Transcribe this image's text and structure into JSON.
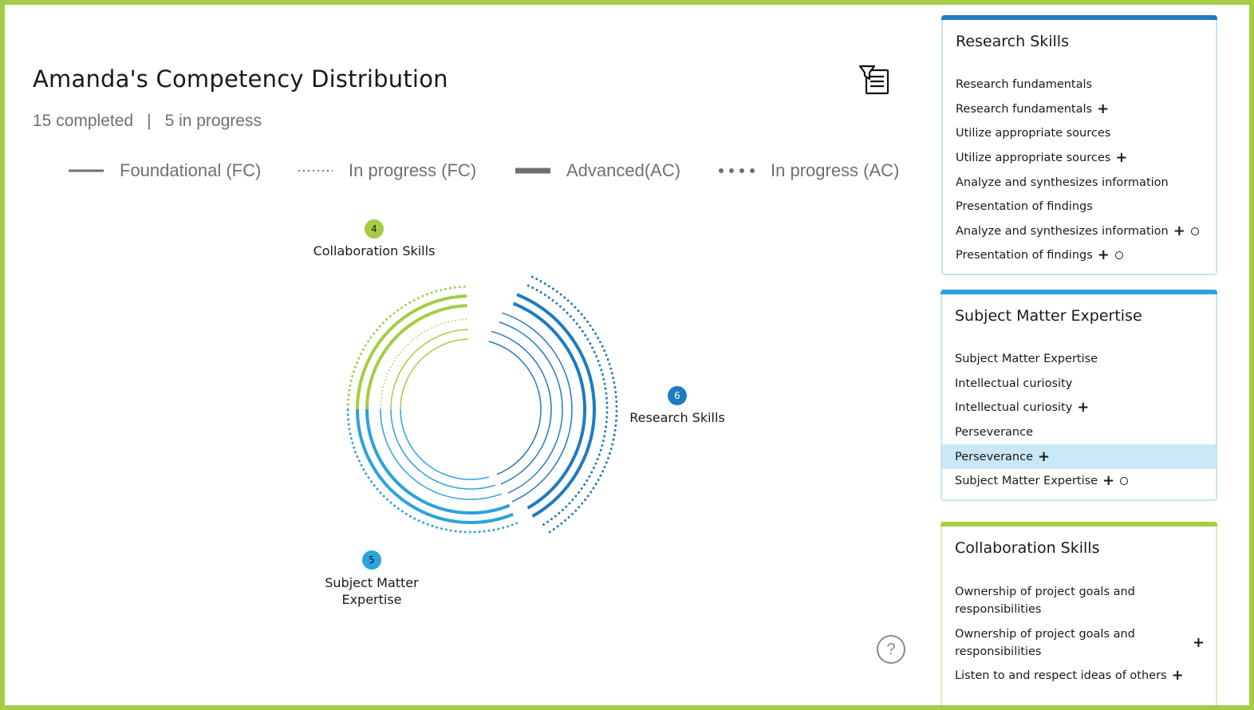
{
  "header": {
    "title": "Amanda's Competency Distribution",
    "completed": "15 completed",
    "separator": "|",
    "in_progress": "5 in progress"
  },
  "legend": [
    {
      "label": "Foundational (FC)",
      "style": "solid-thin"
    },
    {
      "label": "In progress (FC)",
      "style": "dotted-thin"
    },
    {
      "label": "Advanced(AC)",
      "style": "solid-thick"
    },
    {
      "label": "In progress (AC)",
      "style": "dotted-thick"
    }
  ],
  "chart_data": {
    "type": "radial-arcs",
    "segments": [
      {
        "name": "Collaboration Skills",
        "count": "4",
        "color": "#a5cc45",
        "fc": 2,
        "fc_in_progress": 1,
        "ac": 2,
        "ac_in_progress": 1
      },
      {
        "name": "Research Skills",
        "count": "6",
        "color": "#1f7bbf",
        "fc": 4,
        "fc_in_progress": 0,
        "ac": 2,
        "ac_in_progress": 2
      },
      {
        "name": "Subject Matter Expertise",
        "count": "5",
        "color": "#2ba3dd",
        "fc": 3,
        "fc_in_progress": 0,
        "ac": 2,
        "ac_in_progress": 1
      }
    ],
    "subject_label_lines": [
      "Subject Matter",
      "Expertise"
    ]
  },
  "panels": {
    "research": {
      "title": "Research Skills",
      "color": "#1f7bbf",
      "items": [
        {
          "label": "Research fundamentals",
          "plus": false,
          "circle": false
        },
        {
          "label": "Research fundamentals",
          "plus": true,
          "circle": false
        },
        {
          "label": "Utilize appropriate sources",
          "plus": false,
          "circle": false
        },
        {
          "label": "Utilize appropriate sources",
          "plus": true,
          "circle": false
        },
        {
          "label": "Analyze and synthesizes information",
          "plus": false,
          "circle": false
        },
        {
          "label": "Presentation of findings",
          "plus": false,
          "circle": false
        },
        {
          "label": "Analyze and synthesizes information",
          "plus": true,
          "circle": true
        },
        {
          "label": "Presentation of findings",
          "plus": true,
          "circle": true
        }
      ]
    },
    "subject": {
      "title": "Subject Matter Expertise",
      "color": "#2ba3dd",
      "items": [
        {
          "label": "Subject Matter Expertise",
          "plus": false,
          "circle": false
        },
        {
          "label": "Intellectual curiosity",
          "plus": false,
          "circle": false
        },
        {
          "label": "Intellectual curiosity",
          "plus": true,
          "circle": false
        },
        {
          "label": "Perseverance",
          "plus": false,
          "circle": false
        },
        {
          "label": "Perseverance",
          "plus": true,
          "circle": false,
          "highlighted": true
        },
        {
          "label": "Subject Matter Expertise",
          "plus": true,
          "circle": true
        }
      ]
    },
    "collaboration": {
      "title": "Collaboration Skills",
      "color": "#a5cc45",
      "items": [
        {
          "label": "Ownership of project goals and responsibilities",
          "lines": [
            "Ownership of project goals and",
            "responsibilities"
          ],
          "plus": false,
          "circle": false
        },
        {
          "label": "Ownership of project goals and responsibilities",
          "lines": [
            "Ownership of project goals and",
            "responsibilities"
          ],
          "plus": true,
          "circle": false,
          "plus_right": true
        },
        {
          "label": "Listen to and respect ideas of others",
          "plus": true,
          "circle": false
        }
      ]
    }
  },
  "icons": {
    "filter": "filter-list-icon",
    "help": "help-icon",
    "help_glyph": "?"
  }
}
